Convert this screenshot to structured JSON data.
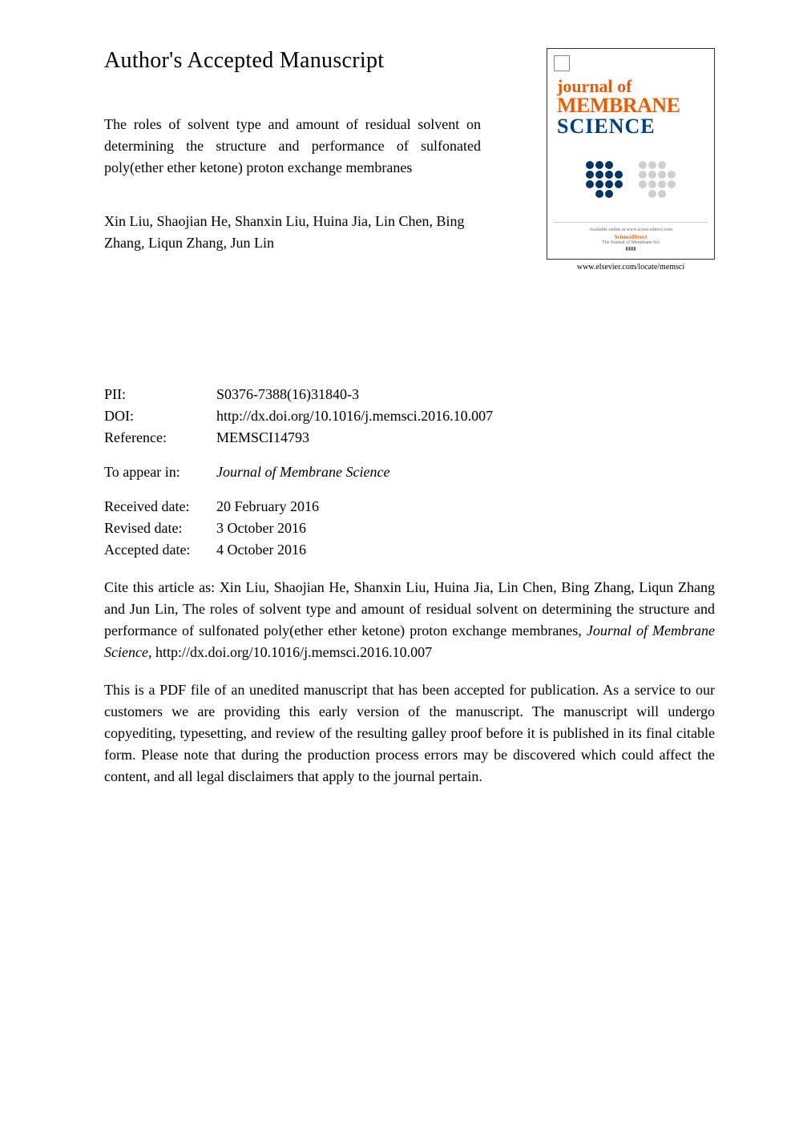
{
  "header": {
    "page_title": "Author's Accepted Manuscript",
    "article_title": "The roles of solvent type and amount of residual solvent on determining the structure and performance of sulfonated poly(ether ether ketone) proton exchange membranes",
    "authors": "Xin Liu, Shaojian He, Shanxin Liu, Huina Jia, Lin Chen, Bing Zhang, Liqun Zhang, Jun Lin"
  },
  "journal_cover": {
    "title_line1": "journal of",
    "title_line2": "MEMBRANE",
    "title_line3": "SCIENCE",
    "footer_publisher": "ScienceDirect",
    "footer_text": "The Journal of Membrane Sci",
    "url": "www.elsevier.com/locate/memsci"
  },
  "metadata": {
    "pii_label": "PII:",
    "pii_value": "S0376-7388(16)31840-3",
    "doi_label": "DOI:",
    "doi_value": "http://dx.doi.org/10.1016/j.memsci.2016.10.007",
    "reference_label": "Reference:",
    "reference_value": "MEMSCI14793",
    "appear_label": "To appear in:",
    "appear_value": "Journal of Membrane Science",
    "received_label": "Received date:",
    "received_value": "20 February 2016",
    "revised_label": "Revised date:",
    "revised_value": "3 October 2016",
    "accepted_label": "Accepted date:",
    "accepted_value": "4 October 2016"
  },
  "citation": {
    "prefix": "Cite this article as: Xin Liu, Shaojian He, Shanxin Liu, Huina Jia, Lin Chen, Bing Zhang, Liqun Zhang and Jun Lin, The roles of solvent type and amount of residual solvent on determining the structure and performance of sulfonated poly(ether ether ketone) proton exchange membranes, ",
    "journal": "Journal of Membrane Science,",
    "suffix": " http://dx.doi.org/10.1016/j.memsci.2016.10.007"
  },
  "disclaimer": "This is a PDF file of an unedited manuscript that has been accepted for publication. As a service to our customers we are providing this early version of the manuscript. The manuscript will undergo copyediting, typesetting, and review of the resulting galley proof before it is published in its final citable form. Please note that during the production process errors may be discovered which could affect the content, and all legal disclaimers that apply to the journal pertain.",
  "colors": {
    "journal_orange": "#e85d04",
    "journal_blue": "#004080",
    "text_black": "#000000",
    "background": "#ffffff"
  }
}
